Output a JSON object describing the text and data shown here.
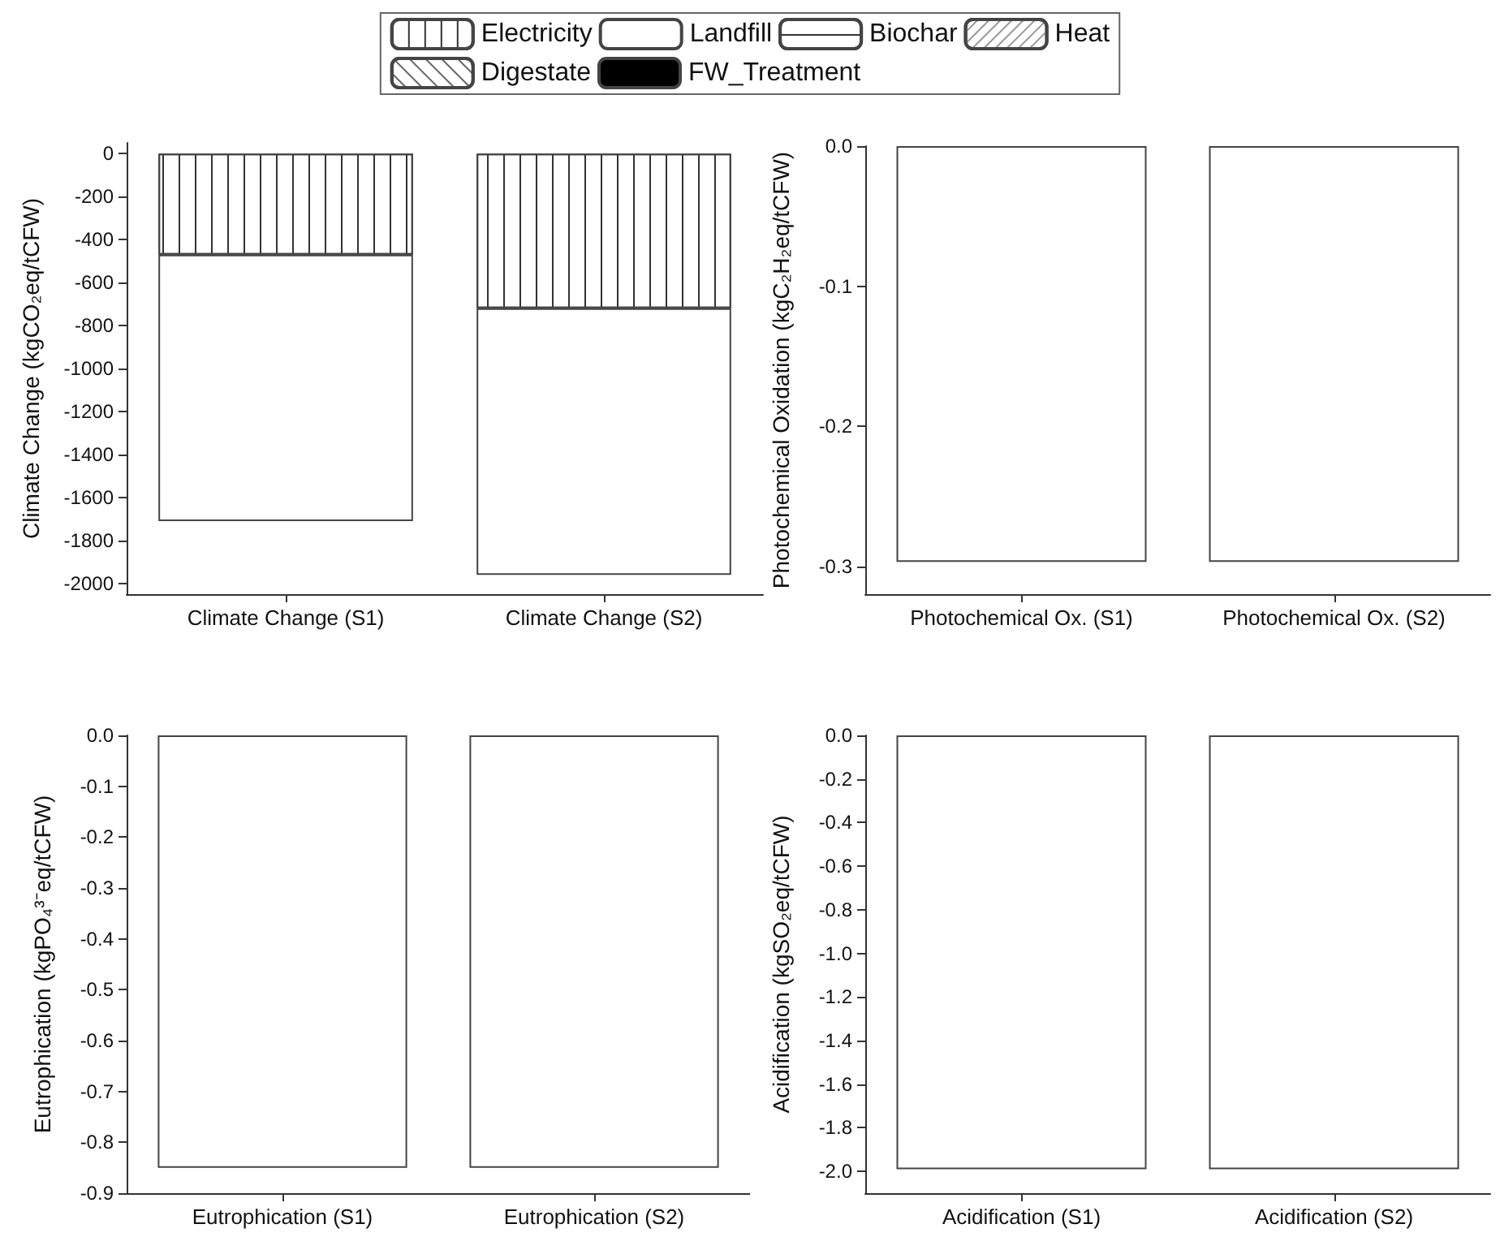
{
  "chart_data": [
    {
      "type": "bar",
      "ylabel": "Climate Change (kgCO₂eq/tCFW)",
      "categories": [
        "Climate Change (S1)",
        "Climate Change (S2)"
      ],
      "stacked": true,
      "legend": "top",
      "series": [
        {
          "name": "Electricity",
          "color": "#ffffff",
          "values": [
            -470,
            -720
          ]
        },
        {
          "name": "Landfill",
          "color": "#ffffff",
          "values": [
            -1240,
            -1240
          ]
        },
        {
          "name": "Biochar",
          "color": "#ffffff",
          "values": [
            null,
            null
          ]
        },
        {
          "name": "Heat",
          "color": "#ffffff",
          "values": [
            null,
            null
          ]
        },
        {
          "name": "Digestate",
          "color": "#ffffff",
          "values": [
            null,
            null
          ]
        },
        {
          "name": "FW_Treatment",
          "color": "#000000",
          "values": [
            null,
            null
          ]
        }
      ],
      "ylim": [
        -2050,
        50
      ],
      "yticks": [
        0,
        -200,
        -400,
        -600,
        -800,
        -1000,
        -1200,
        -1400,
        -1600,
        -1800,
        -2000
      ]
    },
    {
      "type": "bar",
      "ylabel": "Photochemical Oxidation (kgC₂H₂eq/tCFW)",
      "categories": [
        "Photochemical Ox. (S1)",
        "Photochemical Ox. (S2)"
      ],
      "series": [
        {
          "color": "#ffffff",
          "values": [
            -0.297,
            -0.297
          ]
        }
      ],
      "ylim": [
        -0.32,
        0
      ],
      "yticks": [
        {
          "value": 0,
          "label": "0.0"
        },
        -0.1,
        -0.2,
        -0.3
      ]
    },
    {
      "type": "bar",
      "ylabel": "Eutrophication (kgPO₄³⁻eq/tCFW)",
      "categories": [
        "Eutrophication (S1)",
        "Eutrophication (S2)"
      ],
      "series": [
        {
          "color": "#ffffff",
          "values": [
            -0.85,
            -0.85
          ]
        }
      ],
      "ylim": [
        -0.9,
        0
      ],
      "yticks": [
        {
          "value": 0,
          "label": "0.0"
        },
        -0.1,
        -0.2,
        -0.3,
        -0.4,
        -0.5,
        -0.6,
        -0.7,
        -0.8,
        -0.9
      ]
    },
    {
      "type": "bar",
      "ylabel": "Acidification (kgSO₂eq/tCFW)",
      "categories": [
        "Acidification (S1)",
        "Acidification (S2)"
      ],
      "series": [
        {
          "color": "#ffffff",
          "values": [
            -1.99,
            -1.99
          ]
        }
      ],
      "ylim": [
        -2.1,
        0
      ],
      "yticks": [
        {
          "value": 0,
          "label": "0.0"
        },
        -0.2,
        -0.4,
        -0.6,
        -0.8,
        {
          "value": -1,
          "label": "-1.0"
        },
        -1.2,
        -1.4,
        -1.6,
        -1.8,
        {
          "value": -2,
          "label": "-2.0"
        }
      ]
    }
  ]
}
